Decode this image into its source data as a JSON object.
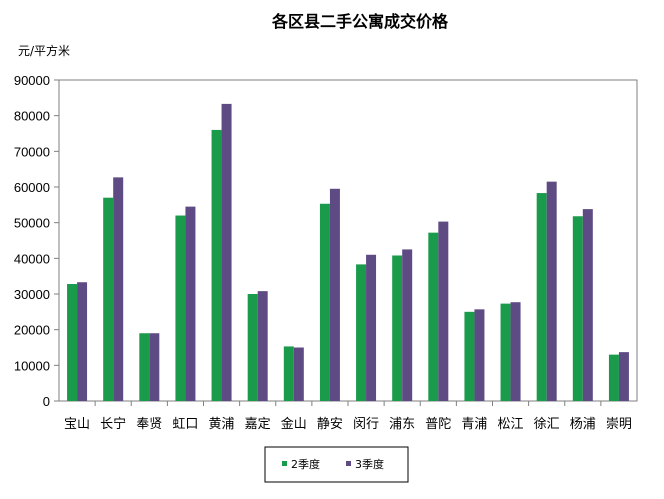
{
  "chart_data": {
    "type": "bar",
    "title": "各区县二手公寓成交价格",
    "ylabel": "元/平方米",
    "xlabel": "",
    "ylim": [
      0,
      90000
    ],
    "yticks": [
      0,
      10000,
      20000,
      30000,
      40000,
      50000,
      60000,
      70000,
      80000,
      90000
    ],
    "grid": false,
    "legend_position": "bottom",
    "categories": [
      "宝山",
      "长宁",
      "奉贤",
      "虹口",
      "黄浦",
      "嘉定",
      "金山",
      "静安",
      "闵行",
      "浦东",
      "普陀",
      "青浦",
      "松江",
      "徐汇",
      "杨浦",
      "崇明"
    ],
    "series": [
      {
        "name": "2季度",
        "color": "#1a9a4b",
        "values": [
          32800,
          57000,
          19000,
          52000,
          76000,
          30000,
          15300,
          55300,
          38300,
          40800,
          47200,
          25000,
          27300,
          58300,
          51800,
          13000
        ]
      },
      {
        "name": "3季度",
        "color": "#5e4b84",
        "values": [
          33300,
          62700,
          19000,
          54500,
          83300,
          30800,
          15000,
          59500,
          41000,
          42500,
          50300,
          25700,
          27700,
          61500,
          53800,
          13700
        ]
      }
    ]
  }
}
